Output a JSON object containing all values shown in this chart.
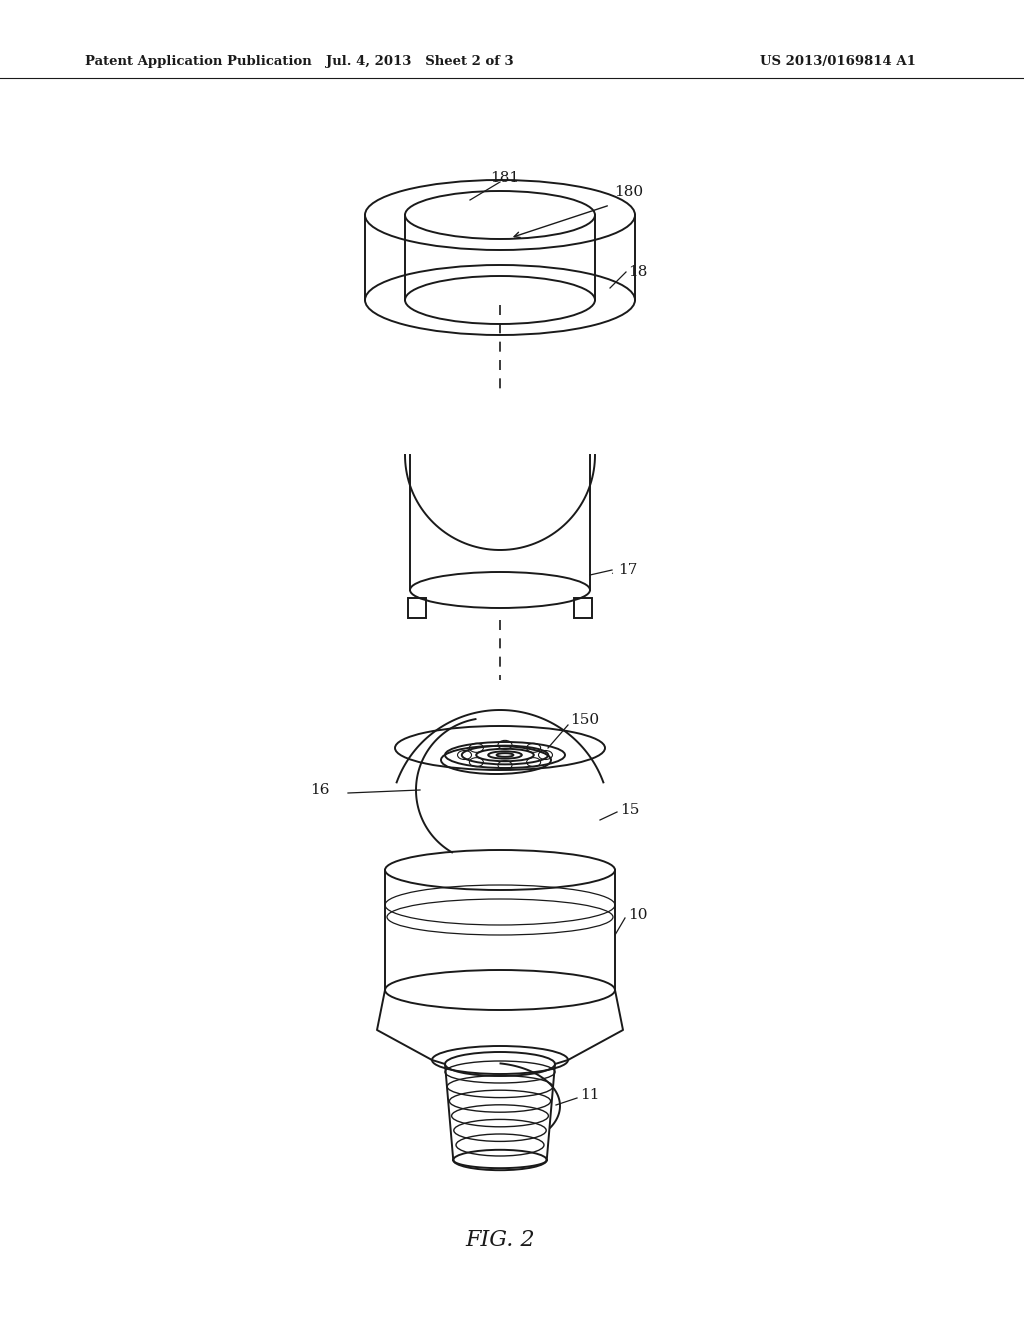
{
  "bg_color": "#ffffff",
  "lc": "#1a1a1a",
  "header_left": "Patent Application Publication",
  "header_mid": "Jul. 4, 2013   Sheet 2 of 3",
  "header_right": "US 2013/0169814 A1",
  "caption": "FIG. 2",
  "lw": 1.4
}
